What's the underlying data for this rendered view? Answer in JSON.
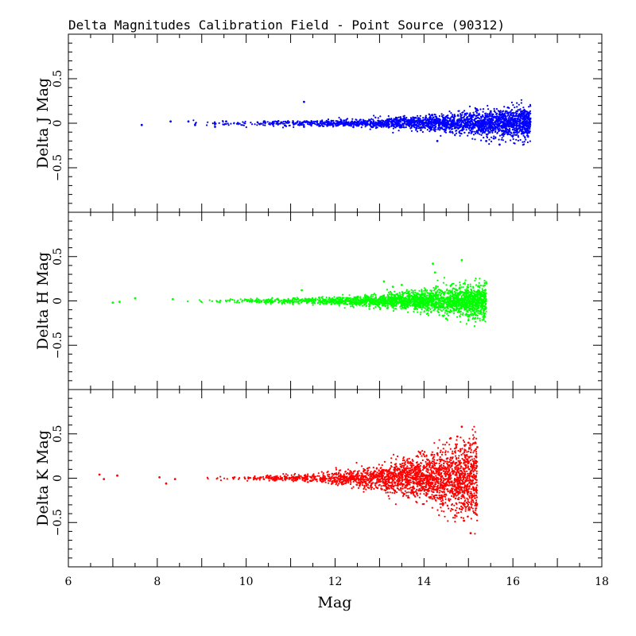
{
  "chart_data": {
    "type": "scatter",
    "title": "Delta Magnitudes Calibration Field - Point Source (90312)",
    "xlabel": "Mag",
    "xlim": [
      6,
      18
    ],
    "x_ticks": [
      "6",
      "8",
      "10",
      "12",
      "14",
      "16",
      "18"
    ],
    "grid": false,
    "panels": [
      {
        "ylabel": "Delta J Mag",
        "ylim": [
          -1,
          1
        ],
        "y_ticks": [
          "−0.5",
          "0",
          "0.5"
        ],
        "color": "#0000ff",
        "outliers": [
          [
            7.65,
            -0.02
          ],
          [
            8.3,
            0.02
          ],
          [
            8.7,
            0.02
          ],
          [
            8.85,
            -0.02
          ],
          [
            9.3,
            -0.04
          ],
          [
            9.55,
            0.02
          ],
          [
            10.4,
            0.02
          ],
          [
            11.3,
            -0.04
          ],
          [
            11.3,
            0.24
          ],
          [
            12.2,
            0.03
          ],
          [
            14.3,
            -0.2
          ],
          [
            15.4,
            -0.2
          ],
          [
            15.7,
            -0.24
          ],
          [
            16.3,
            0.13
          ],
          [
            16.25,
            0.06
          ]
        ],
        "distribution": {
          "x_min": 8.0,
          "x_max": 16.4,
          "scatter_base": 0.012,
          "scatter_growth": 0.085,
          "skew": 0.0
        }
      },
      {
        "ylabel": "Delta H Mag",
        "ylim": [
          -1,
          1
        ],
        "y_ticks": [
          "−0.5",
          "0",
          "0.5"
        ],
        "color": "#00ff00",
        "outliers": [
          [
            7.0,
            -0.02
          ],
          [
            7.15,
            -0.01
          ],
          [
            7.5,
            0.03
          ],
          [
            8.35,
            0.02
          ],
          [
            11.25,
            0.12
          ],
          [
            13.1,
            0.22
          ],
          [
            13.3,
            0.16
          ],
          [
            13.5,
            0.18
          ],
          [
            14.2,
            0.42
          ],
          [
            14.25,
            0.32
          ],
          [
            14.85,
            0.46
          ],
          [
            14.6,
            0.17
          ],
          [
            15.4,
            0.2
          ],
          [
            15.0,
            -0.22
          ],
          [
            14.5,
            -0.2
          ]
        ],
        "distribution": {
          "x_min": 8.3,
          "x_max": 15.4,
          "scatter_base": 0.012,
          "scatter_growth": 0.09,
          "skew": 0.0
        }
      },
      {
        "ylabel": "Delta K Mag",
        "ylim": [
          -1,
          1
        ],
        "y_ticks": [
          "−0.5",
          "0",
          "0.5"
        ],
        "color": "#ff0000",
        "outliers": [
          [
            6.7,
            0.04
          ],
          [
            6.8,
            -0.01
          ],
          [
            7.1,
            0.03
          ],
          [
            8.05,
            0.01
          ],
          [
            8.2,
            -0.06
          ],
          [
            8.4,
            -0.01
          ],
          [
            14.85,
            0.58
          ],
          [
            14.75,
            0.47
          ],
          [
            14.6,
            0.45
          ],
          [
            14.3,
            0.28
          ],
          [
            14.7,
            -0.42
          ],
          [
            15.05,
            -0.62
          ],
          [
            14.9,
            -0.48
          ],
          [
            15.2,
            0.35
          ],
          [
            15.0,
            0.4
          ]
        ],
        "distribution": {
          "x_min": 8.7,
          "x_max": 15.2,
          "scatter_base": 0.01,
          "scatter_growth": 0.22,
          "skew": 0.0
        }
      }
    ]
  }
}
